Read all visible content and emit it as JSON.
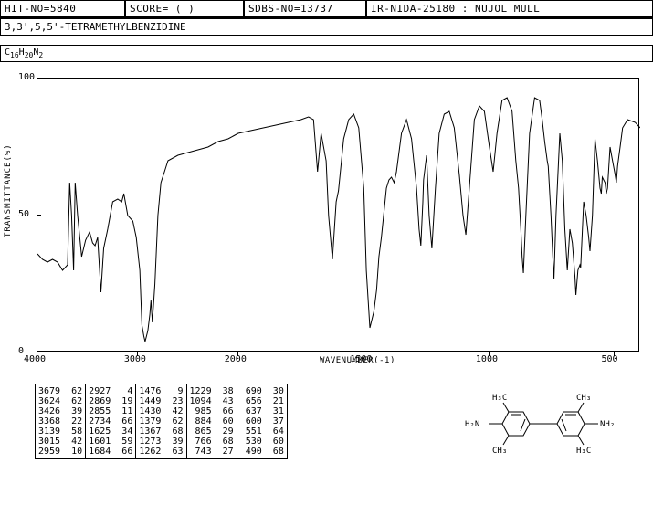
{
  "header": {
    "cells": [
      "HIT-NO=5840",
      "SCORE=  (  )",
      "SDBS-NO=13737",
      "IR-NIDA-25180 : NUJOL MULL"
    ],
    "compound": "3,3',5,5'-TETRAMETHYLBENZIDINE",
    "formula_parts": [
      "C",
      "16",
      "H",
      "20",
      "N",
      "2"
    ]
  },
  "chart": {
    "type": "line",
    "xlabel": "WAVENUMBER(-1)",
    "ylabel": "TRANSMITTANCE(%)",
    "xlim": [
      4000,
      400
    ],
    "ylim": [
      0,
      100
    ],
    "xticks": [
      4000,
      3000,
      2000,
      1500,
      1000,
      500
    ],
    "yticks": [
      0,
      50,
      100
    ],
    "x_break": 2000,
    "line_color": "#000000",
    "line_width": 1,
    "background": "#ffffff",
    "spectrum": [
      [
        4000,
        36
      ],
      [
        3950,
        34
      ],
      [
        3900,
        33
      ],
      [
        3850,
        34
      ],
      [
        3800,
        33
      ],
      [
        3750,
        30
      ],
      [
        3700,
        32
      ],
      [
        3679,
        62
      ],
      [
        3660,
        50
      ],
      [
        3640,
        30
      ],
      [
        3624,
        62
      ],
      [
        3600,
        50
      ],
      [
        3560,
        35
      ],
      [
        3520,
        41
      ],
      [
        3480,
        44
      ],
      [
        3450,
        40
      ],
      [
        3426,
        39
      ],
      [
        3400,
        42
      ],
      [
        3368,
        22
      ],
      [
        3340,
        38
      ],
      [
        3300,
        45
      ],
      [
        3250,
        55
      ],
      [
        3200,
        56
      ],
      [
        3160,
        55
      ],
      [
        3139,
        58
      ],
      [
        3100,
        50
      ],
      [
        3050,
        48
      ],
      [
        3015,
        42
      ],
      [
        2980,
        30
      ],
      [
        2959,
        10
      ],
      [
        2940,
        6
      ],
      [
        2927,
        4
      ],
      [
        2900,
        8
      ],
      [
        2880,
        14
      ],
      [
        2869,
        19
      ],
      [
        2855,
        11
      ],
      [
        2830,
        25
      ],
      [
        2800,
        50
      ],
      [
        2770,
        62
      ],
      [
        2734,
        66
      ],
      [
        2700,
        70
      ],
      [
        2600,
        72
      ],
      [
        2500,
        73
      ],
      [
        2400,
        74
      ],
      [
        2300,
        75
      ],
      [
        2200,
        77
      ],
      [
        2100,
        78
      ],
      [
        2050,
        79
      ],
      [
        2000,
        80
      ],
      [
        1950,
        81
      ],
      [
        1900,
        82
      ],
      [
        1850,
        83
      ],
      [
        1800,
        84
      ],
      [
        1750,
        85
      ],
      [
        1720,
        86
      ],
      [
        1700,
        85
      ],
      [
        1684,
        66
      ],
      [
        1670,
        80
      ],
      [
        1650,
        70
      ],
      [
        1640,
        50
      ],
      [
        1625,
        34
      ],
      [
        1610,
        55
      ],
      [
        1601,
        59
      ],
      [
        1580,
        78
      ],
      [
        1560,
        85
      ],
      [
        1540,
        87
      ],
      [
        1520,
        82
      ],
      [
        1500,
        60
      ],
      [
        1490,
        30
      ],
      [
        1476,
        9
      ],
      [
        1460,
        15
      ],
      [
        1449,
        23
      ],
      [
        1440,
        35
      ],
      [
        1430,
        42
      ],
      [
        1410,
        60
      ],
      [
        1400,
        63
      ],
      [
        1390,
        64
      ],
      [
        1379,
        62
      ],
      [
        1370,
        66
      ],
      [
        1367,
        68
      ],
      [
        1350,
        80
      ],
      [
        1330,
        85
      ],
      [
        1310,
        78
      ],
      [
        1290,
        60
      ],
      [
        1280,
        45
      ],
      [
        1273,
        39
      ],
      [
        1265,
        55
      ],
      [
        1262,
        63
      ],
      [
        1250,
        72
      ],
      [
        1240,
        50
      ],
      [
        1229,
        38
      ],
      [
        1215,
        60
      ],
      [
        1200,
        80
      ],
      [
        1180,
        87
      ],
      [
        1160,
        88
      ],
      [
        1140,
        82
      ],
      [
        1120,
        65
      ],
      [
        1105,
        50
      ],
      [
        1094,
        43
      ],
      [
        1080,
        60
      ],
      [
        1060,
        85
      ],
      [
        1040,
        90
      ],
      [
        1020,
        88
      ],
      [
        1000,
        75
      ],
      [
        985,
        66
      ],
      [
        970,
        80
      ],
      [
        950,
        92
      ],
      [
        930,
        93
      ],
      [
        910,
        88
      ],
      [
        895,
        70
      ],
      [
        884,
        60
      ],
      [
        875,
        45
      ],
      [
        870,
        35
      ],
      [
        865,
        29
      ],
      [
        855,
        50
      ],
      [
        840,
        80
      ],
      [
        820,
        93
      ],
      [
        800,
        92
      ],
      [
        790,
        85
      ],
      [
        780,
        77
      ],
      [
        770,
        70
      ],
      [
        766,
        68
      ],
      [
        755,
        50
      ],
      [
        748,
        35
      ],
      [
        743,
        27
      ],
      [
        735,
        50
      ],
      [
        720,
        80
      ],
      [
        710,
        70
      ],
      [
        700,
        45
      ],
      [
        690,
        30
      ],
      [
        680,
        45
      ],
      [
        670,
        40
      ],
      [
        660,
        28
      ],
      [
        656,
        21
      ],
      [
        648,
        30
      ],
      [
        640,
        32
      ],
      [
        637,
        31
      ],
      [
        625,
        55
      ],
      [
        615,
        50
      ],
      [
        605,
        42
      ],
      [
        600,
        37
      ],
      [
        590,
        50
      ],
      [
        580,
        78
      ],
      [
        570,
        70
      ],
      [
        560,
        60
      ],
      [
        555,
        58
      ],
      [
        551,
        64
      ],
      [
        540,
        62
      ],
      [
        535,
        58
      ],
      [
        530,
        60
      ],
      [
        520,
        75
      ],
      [
        510,
        70
      ],
      [
        500,
        65
      ],
      [
        495,
        62
      ],
      [
        490,
        68
      ],
      [
        480,
        75
      ],
      [
        470,
        82
      ],
      [
        450,
        85
      ],
      [
        420,
        84
      ],
      [
        400,
        82
      ]
    ]
  },
  "peak_table": {
    "columns": [
      [
        [
          3679,
          62
        ],
        [
          3624,
          62
        ],
        [
          3426,
          39
        ],
        [
          3368,
          22
        ],
        [
          3139,
          58
        ],
        [
          3015,
          42
        ],
        [
          2959,
          10
        ]
      ],
      [
        [
          2927,
          4
        ],
        [
          2869,
          19
        ],
        [
          2855,
          11
        ],
        [
          2734,
          66
        ],
        [
          1625,
          34
        ],
        [
          1601,
          59
        ],
        [
          1684,
          66
        ]
      ],
      [
        [
          1476,
          9
        ],
        [
          1449,
          23
        ],
        [
          1430,
          42
        ],
        [
          1379,
          62
        ],
        [
          1367,
          68
        ],
        [
          1273,
          39
        ],
        [
          1262,
          63
        ]
      ],
      [
        [
          1229,
          38
        ],
        [
          1094,
          43
        ],
        [
          985,
          66
        ],
        [
          884,
          60
        ],
        [
          865,
          29
        ],
        [
          766,
          68
        ],
        [
          743,
          27
        ]
      ],
      [
        [
          690,
          30
        ],
        [
          656,
          21
        ],
        [
          637,
          31
        ],
        [
          600,
          37
        ],
        [
          551,
          64
        ],
        [
          530,
          60
        ],
        [
          490,
          68
        ]
      ]
    ]
  },
  "molecule": {
    "labels": {
      "ch3_tl": "H₃C",
      "ch3_tr": "CH₃",
      "ch3_bl": "CH₃",
      "ch3_br": "H₃C",
      "nh2_l": "H₂N",
      "nh2_r": "NH₂"
    }
  }
}
